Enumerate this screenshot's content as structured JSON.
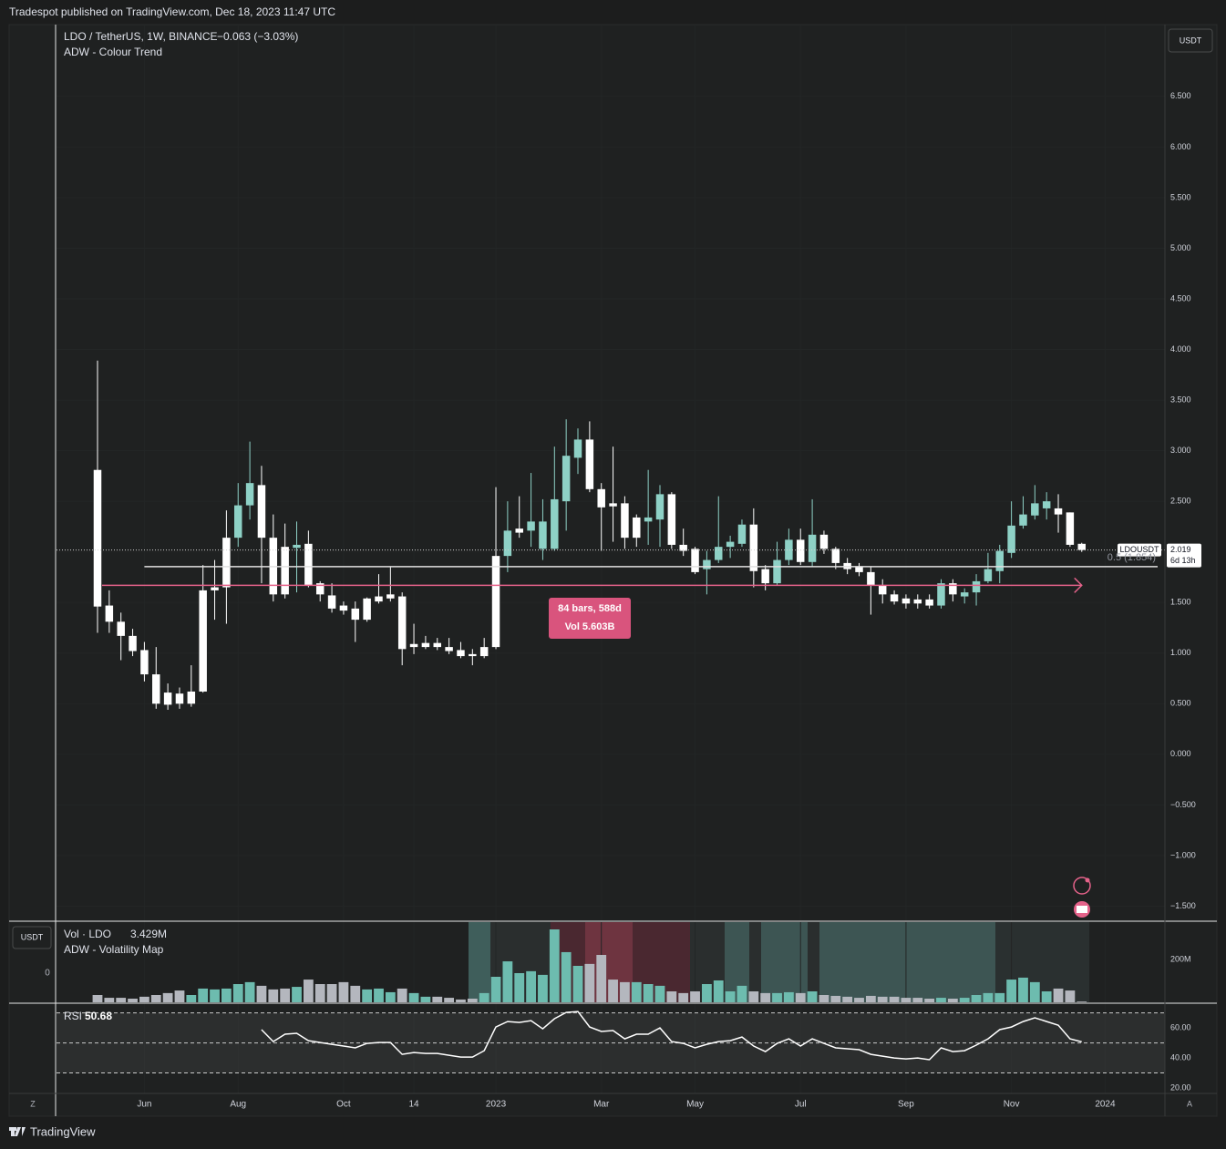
{
  "header": {
    "published": "Tradespot published on TradingView.com, Dec 18, 2023 11:47 UTC",
    "brand": "TradingView",
    "scale_mode_z": "Z",
    "scale_mode_a": "A"
  },
  "chart_data": [
    {
      "type": "candlestick",
      "title": "LDO / TetherUS, 1W, BINANCE",
      "change": "−0.063 (−3.03%)",
      "indicator": "ADW - Colour Trend",
      "currency": "USDT",
      "symbol": "LDOUSDT",
      "countdown": "6d 13h",
      "open": [
        2.81,
        1.47,
        1.31,
        1.17,
        1.03,
        0.79,
        0.61,
        0.6,
        0.5,
        0.62,
        1.62,
        1.65,
        2.14,
        2.46,
        2.66,
        2.14,
        2.05,
        2.04,
        2.08,
        1.69,
        1.57,
        1.47,
        1.44,
        1.33,
        1.51,
        1.54,
        1.56,
        1.06,
        1.06,
        1.1,
        1.06,
        1.03,
        0.99,
        0.97,
        1.06,
        1.96,
        2.19,
        2.21,
        2.03,
        2.03,
        2.5,
        2.93,
        3.11,
        2.62,
        2.48,
        2.48,
        2.14,
        2.3,
        2.32,
        2.57,
        2.07,
        2.03,
        1.83,
        1.92,
        2.05,
        2.08,
        2.27,
        1.83,
        1.69,
        1.92,
        2.12,
        1.9,
        2.17,
        2.03,
        1.89,
        1.85,
        1.8,
        1.67,
        1.58,
        1.54,
        1.53,
        1.53,
        1.47,
        1.69,
        1.56,
        1.6,
        1.71,
        1.81,
        1.99,
        2.26,
        2.36,
        2.43,
        2.43,
        2.39,
        2.08
      ],
      "high": [
        3.89,
        1.62,
        1.4,
        1.24,
        1.11,
        1.06,
        0.7,
        0.66,
        0.88,
        1.87,
        1.92,
        2.41,
        2.68,
        3.09,
        2.85,
        2.37,
        2.28,
        2.3,
        2.21,
        1.71,
        1.69,
        1.51,
        1.51,
        1.55,
        1.78,
        1.85,
        1.6,
        1.29,
        1.17,
        1.15,
        1.15,
        1.11,
        1.04,
        1.15,
        2.64,
        2.5,
        2.55,
        2.78,
        2.52,
        3.04,
        3.31,
        3.22,
        3.29,
        2.68,
        3.04,
        2.55,
        2.37,
        2.81,
        2.66,
        2.59,
        2.23,
        2.05,
        2.01,
        2.55,
        2.16,
        2.32,
        2.43,
        1.87,
        2.1,
        2.23,
        2.23,
        2.52,
        2.21,
        2.05,
        1.94,
        1.89,
        1.85,
        1.73,
        1.62,
        1.58,
        1.58,
        1.58,
        1.73,
        1.73,
        1.64,
        1.78,
        1.99,
        2.07,
        2.5,
        2.55,
        2.66,
        2.59,
        2.57,
        2.39,
        2.09
      ],
      "low": [
        1.2,
        1.2,
        0.93,
        0.97,
        0.72,
        0.45,
        0.44,
        0.45,
        0.47,
        0.61,
        1.33,
        1.29,
        2.05,
        2.32,
        1.69,
        1.51,
        1.54,
        1.6,
        1.65,
        1.51,
        1.4,
        1.38,
        1.11,
        1.31,
        1.49,
        1.51,
        0.88,
        0.99,
        1.04,
        1.03,
        0.99,
        0.95,
        0.88,
        0.95,
        1.04,
        1.8,
        2.14,
        2.05,
        1.92,
        2.01,
        2.21,
        2.77,
        2.59,
        2.01,
        2.1,
        2.03,
        2.05,
        2.07,
        2.05,
        2.03,
        1.96,
        1.78,
        1.58,
        1.89,
        1.94,
        2.05,
        1.65,
        1.62,
        1.67,
        1.87,
        1.87,
        1.85,
        1.98,
        1.83,
        1.78,
        1.76,
        1.38,
        1.49,
        1.48,
        1.44,
        1.44,
        1.44,
        1.44,
        1.51,
        1.49,
        1.47,
        1.69,
        1.69,
        1.94,
        2.23,
        2.32,
        2.32,
        2.19,
        2.05,
        2.0
      ],
      "close": [
        1.46,
        1.31,
        1.17,
        1.02,
        0.79,
        0.5,
        0.49,
        0.5,
        0.62,
        1.62,
        1.65,
        2.14,
        2.46,
        2.68,
        2.14,
        1.58,
        1.58,
        2.07,
        1.67,
        1.58,
        1.44,
        1.42,
        1.33,
        1.54,
        1.56,
        1.58,
        1.04,
        1.09,
        1.1,
        1.06,
        1.02,
        0.97,
        0.97,
        1.06,
        1.96,
        2.21,
        2.23,
        2.3,
        2.3,
        2.52,
        2.95,
        3.11,
        2.62,
        2.44,
        2.45,
        2.14,
        2.34,
        2.34,
        2.57,
        2.07,
        2.01,
        1.8,
        1.92,
        2.05,
        2.1,
        2.27,
        1.81,
        1.69,
        1.92,
        2.12,
        1.9,
        2.17,
        2.03,
        1.89,
        1.83,
        1.8,
        1.67,
        1.58,
        1.51,
        1.49,
        1.49,
        1.47,
        1.69,
        1.58,
        1.6,
        1.71,
        1.83,
        2.01,
        2.26,
        2.37,
        2.48,
        2.5,
        2.37,
        2.07,
        2.019
      ],
      "colors": [
        "#ffffff",
        "#ffffff",
        "#ffffff",
        "#ffffff",
        "#ffffff",
        "#ffffff",
        "#ffffff",
        "#ffffff",
        "#ffffff",
        "#ffffff",
        "#ffffff",
        "#ffffff",
        "#8ed1c6",
        "#8ed1c6",
        "#ffffff",
        "#ffffff",
        "#ffffff",
        "#8ed1c6",
        "#ffffff",
        "#ffffff",
        "#ffffff",
        "#ffffff",
        "#ffffff",
        "#ffffff",
        "#ffffff",
        "#ffffff",
        "#ffffff",
        "#ffffff",
        "#ffffff",
        "#ffffff",
        "#ffffff",
        "#ffffff",
        "#ffffff",
        "#ffffff",
        "#ffffff",
        "#8ed1c6",
        "#ffffff",
        "#8ed1c6",
        "#8ed1c6",
        "#8ed1c6",
        "#8ed1c6",
        "#8ed1c6",
        "#ffffff",
        "#ffffff",
        "#ffffff",
        "#ffffff",
        "#ffffff",
        "#8ed1c6",
        "#8ed1c6",
        "#ffffff",
        "#ffffff",
        "#ffffff",
        "#8ed1c6",
        "#8ed1c6",
        "#8ed1c6",
        "#8ed1c6",
        "#ffffff",
        "#ffffff",
        "#8ed1c6",
        "#8ed1c6",
        "#ffffff",
        "#8ed1c6",
        "#ffffff",
        "#ffffff",
        "#ffffff",
        "#ffffff",
        "#ffffff",
        "#ffffff",
        "#ffffff",
        "#ffffff",
        "#ffffff",
        "#ffffff",
        "#8ed1c6",
        "#ffffff",
        "#8ed1c6",
        "#8ed1c6",
        "#8ed1c6",
        "#8ed1c6",
        "#8ed1c6",
        "#8ed1c6",
        "#8ed1c6",
        "#8ed1c6",
        "#ffffff",
        "#ffffff",
        "#ffffff"
      ],
      "xlim": [
        -3.5,
        91.1
      ],
      "xticks": [
        {
          "value": 4,
          "label": "Jun"
        },
        {
          "value": 12,
          "label": "Aug"
        },
        {
          "value": 21,
          "label": "Oct"
        },
        {
          "value": 27,
          "label": "14"
        },
        {
          "value": 34,
          "label": "2023"
        },
        {
          "value": 43,
          "label": "Mar"
        },
        {
          "value": 51,
          "label": "May"
        },
        {
          "value": 60,
          "label": "Jul"
        },
        {
          "value": 69,
          "label": "Sep"
        },
        {
          "value": 78,
          "label": "Nov"
        },
        {
          "value": 86,
          "label": "2024"
        }
      ],
      "ylim": [
        -1.64,
        7.21
      ],
      "yticks": [
        {
          "value": -1.5,
          "label": "−1.500"
        },
        {
          "value": -1,
          "label": "−1.000"
        },
        {
          "value": -0.5,
          "label": "−0.500"
        },
        {
          "value": 0,
          "label": "0.000"
        },
        {
          "value": 0.5,
          "label": "0.500"
        },
        {
          "value": 1,
          "label": "1.000"
        },
        {
          "value": 1.5,
          "label": "1.500"
        },
        {
          "value": 2,
          "label": "2.000"
        },
        {
          "value": 2.5,
          "label": "2.500"
        },
        {
          "value": 3,
          "label": "3.000"
        },
        {
          "value": 3.5,
          "label": "3.500"
        },
        {
          "value": 4,
          "label": "4.000"
        },
        {
          "value": 4.5,
          "label": "4.500"
        },
        {
          "value": 5,
          "label": "5.000"
        },
        {
          "value": 5.5,
          "label": "5.500"
        },
        {
          "value": 6,
          "label": "6.000"
        },
        {
          "value": 6.5,
          "label": "6.500"
        }
      ],
      "grid": true,
      "level": {
        "value": 1.854,
        "label": "0.5 (1.854)",
        "color": "#e0e0e0"
      },
      "ray": {
        "value": 1.67,
        "color": "#e5628a"
      },
      "measure": {
        "bars": "84 bars, 588d",
        "volume": "Vol 5.603B"
      }
    },
    {
      "type": "bar",
      "title": "Vol · LDO",
      "last": "3.429M",
      "indicator": "ADW - Volatility Map",
      "currency": "USDT",
      "left_zero": "0",
      "values": [
        34000000,
        21000000,
        21000000,
        17000000,
        26000000,
        34000000,
        43000000,
        55000000,
        34000000,
        64000000,
        60000000,
        64000000,
        85000000,
        94000000,
        77000000,
        60000000,
        64000000,
        72000000,
        106000000,
        85000000,
        85000000,
        94000000,
        77000000,
        60000000,
        64000000,
        47000000,
        64000000,
        43000000,
        26000000,
        26000000,
        21000000,
        13000000,
        17000000,
        43000000,
        119000000,
        191000000,
        136000000,
        145000000,
        128000000,
        340000000,
        234000000,
        170000000,
        179000000,
        221000000,
        106000000,
        94000000,
        94000000,
        85000000,
        77000000,
        51000000,
        43000000,
        51000000,
        85000000,
        102000000,
        51000000,
        77000000,
        51000000,
        43000000,
        43000000,
        47000000,
        43000000,
        51000000,
        34000000,
        30000000,
        26000000,
        21000000,
        30000000,
        26000000,
        26000000,
        21000000,
        21000000,
        17000000,
        21000000,
        17000000,
        21000000,
        34000000,
        43000000,
        43000000,
        106000000,
        115000000,
        94000000,
        51000000,
        64000000,
        55000000,
        3429000
      ],
      "up_color": "#6dbcaf",
      "down_color": "#b4b7be",
      "ylim": [
        0,
        374000000
      ],
      "yticks": [
        {
          "value": 200000000,
          "label": "200M"
        }
      ]
    },
    {
      "type": "line",
      "title": "RSI",
      "color": "#ffffff",
      "values": [
        null,
        null,
        null,
        null,
        null,
        null,
        null,
        null,
        null,
        null,
        null,
        null,
        null,
        null,
        58.8,
        50.9,
        55.8,
        56.4,
        51.5,
        50.3,
        49.1,
        47.9,
        46.7,
        49.7,
        50.3,
        50.3,
        42.4,
        43.6,
        43.0,
        43.0,
        41.8,
        40.6,
        40.6,
        44.8,
        60.6,
        64.2,
        63.6,
        64.8,
        59.4,
        66.1,
        70.3,
        70.9,
        60.6,
        57.6,
        58.2,
        52.7,
        55.8,
        55.8,
        60.0,
        50.9,
        49.7,
        46.7,
        49.1,
        50.9,
        51.5,
        53.9,
        47.9,
        44.2,
        49.7,
        52.7,
        47.9,
        52.7,
        49.7,
        46.7,
        46.1,
        45.5,
        42.4,
        41.2,
        40.0,
        39.4,
        40.0,
        38.8,
        46.7,
        44.2,
        44.8,
        48.5,
        52.7,
        58.8,
        60.6,
        64.2,
        66.7,
        64.2,
        61.8,
        52.7,
        50.68
      ],
      "levels": [
        70,
        50,
        30
      ],
      "ylim": [
        16.4,
        75.8
      ],
      "yticks": [
        {
          "value": 20,
          "label": "20.00"
        },
        {
          "value": 40,
          "label": "40.00"
        },
        {
          "value": 60,
          "label": "60.00"
        }
      ]
    }
  ]
}
